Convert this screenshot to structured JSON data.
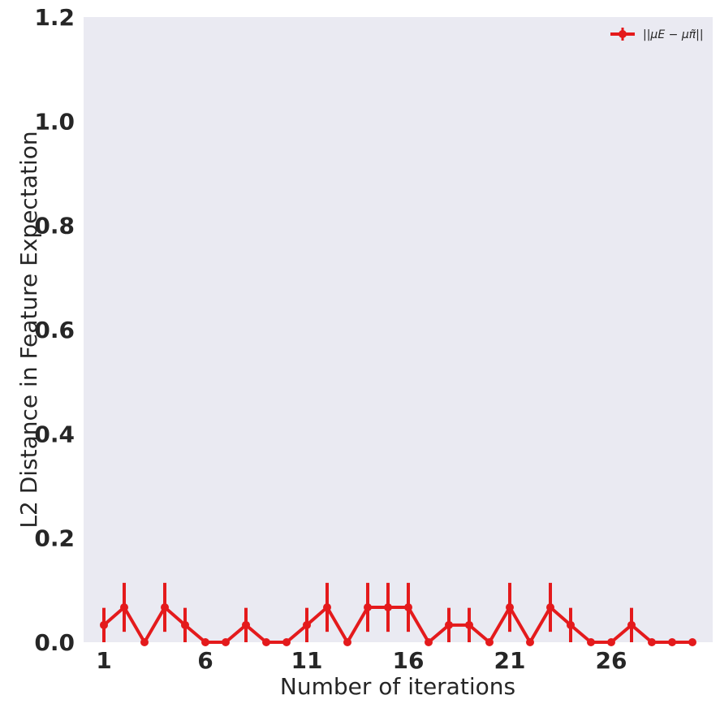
{
  "chart_data": {
    "type": "line",
    "title": "",
    "xlabel": "Number of iterations",
    "ylabel": "L2 Distance in Feature Expectation",
    "xlim": [
      0,
      31
    ],
    "ylim": [
      0,
      1.2
    ],
    "xticks": [
      1,
      6,
      11,
      16,
      21,
      26
    ],
    "xtick_labels": [
      "1",
      "6",
      "11",
      "16",
      "21",
      "26"
    ],
    "yticks": [
      0.0,
      0.2,
      0.4,
      0.6,
      0.8,
      1.0,
      1.2
    ],
    "ytick_labels": [
      "0.0",
      "0.2",
      "0.4",
      "0.6",
      "0.8",
      "1.0",
      "1.2"
    ],
    "grid": false,
    "legend_position": "top-right",
    "background_color": "#eaeaf2",
    "series": [
      {
        "name": "||μE − μπ̃||",
        "color": "#e41a1c",
        "x": [
          1,
          2,
          3,
          4,
          5,
          6,
          7,
          8,
          9,
          10,
          11,
          12,
          13,
          14,
          15,
          16,
          17,
          18,
          19,
          20,
          21,
          22,
          23,
          24,
          25,
          26,
          27,
          28,
          29,
          30
        ],
        "y": [
          0.033,
          0.067,
          0,
          0.067,
          0.033,
          0,
          0,
          0.033,
          0,
          0,
          0.033,
          0.067,
          0,
          0.067,
          0.067,
          0.067,
          0,
          0.033,
          0.033,
          0,
          0.067,
          0,
          0.067,
          0.033,
          0,
          0,
          0.033,
          0,
          0,
          0
        ],
        "error": [
          0.033,
          0.047,
          0,
          0.047,
          0.033,
          0,
          0,
          0.033,
          0,
          0,
          0.033,
          0.047,
          0,
          0.047,
          0.047,
          0.047,
          0,
          0.033,
          0.033,
          0,
          0.047,
          0,
          0.047,
          0.033,
          0,
          0,
          0.033,
          0,
          0,
          0
        ]
      }
    ]
  }
}
